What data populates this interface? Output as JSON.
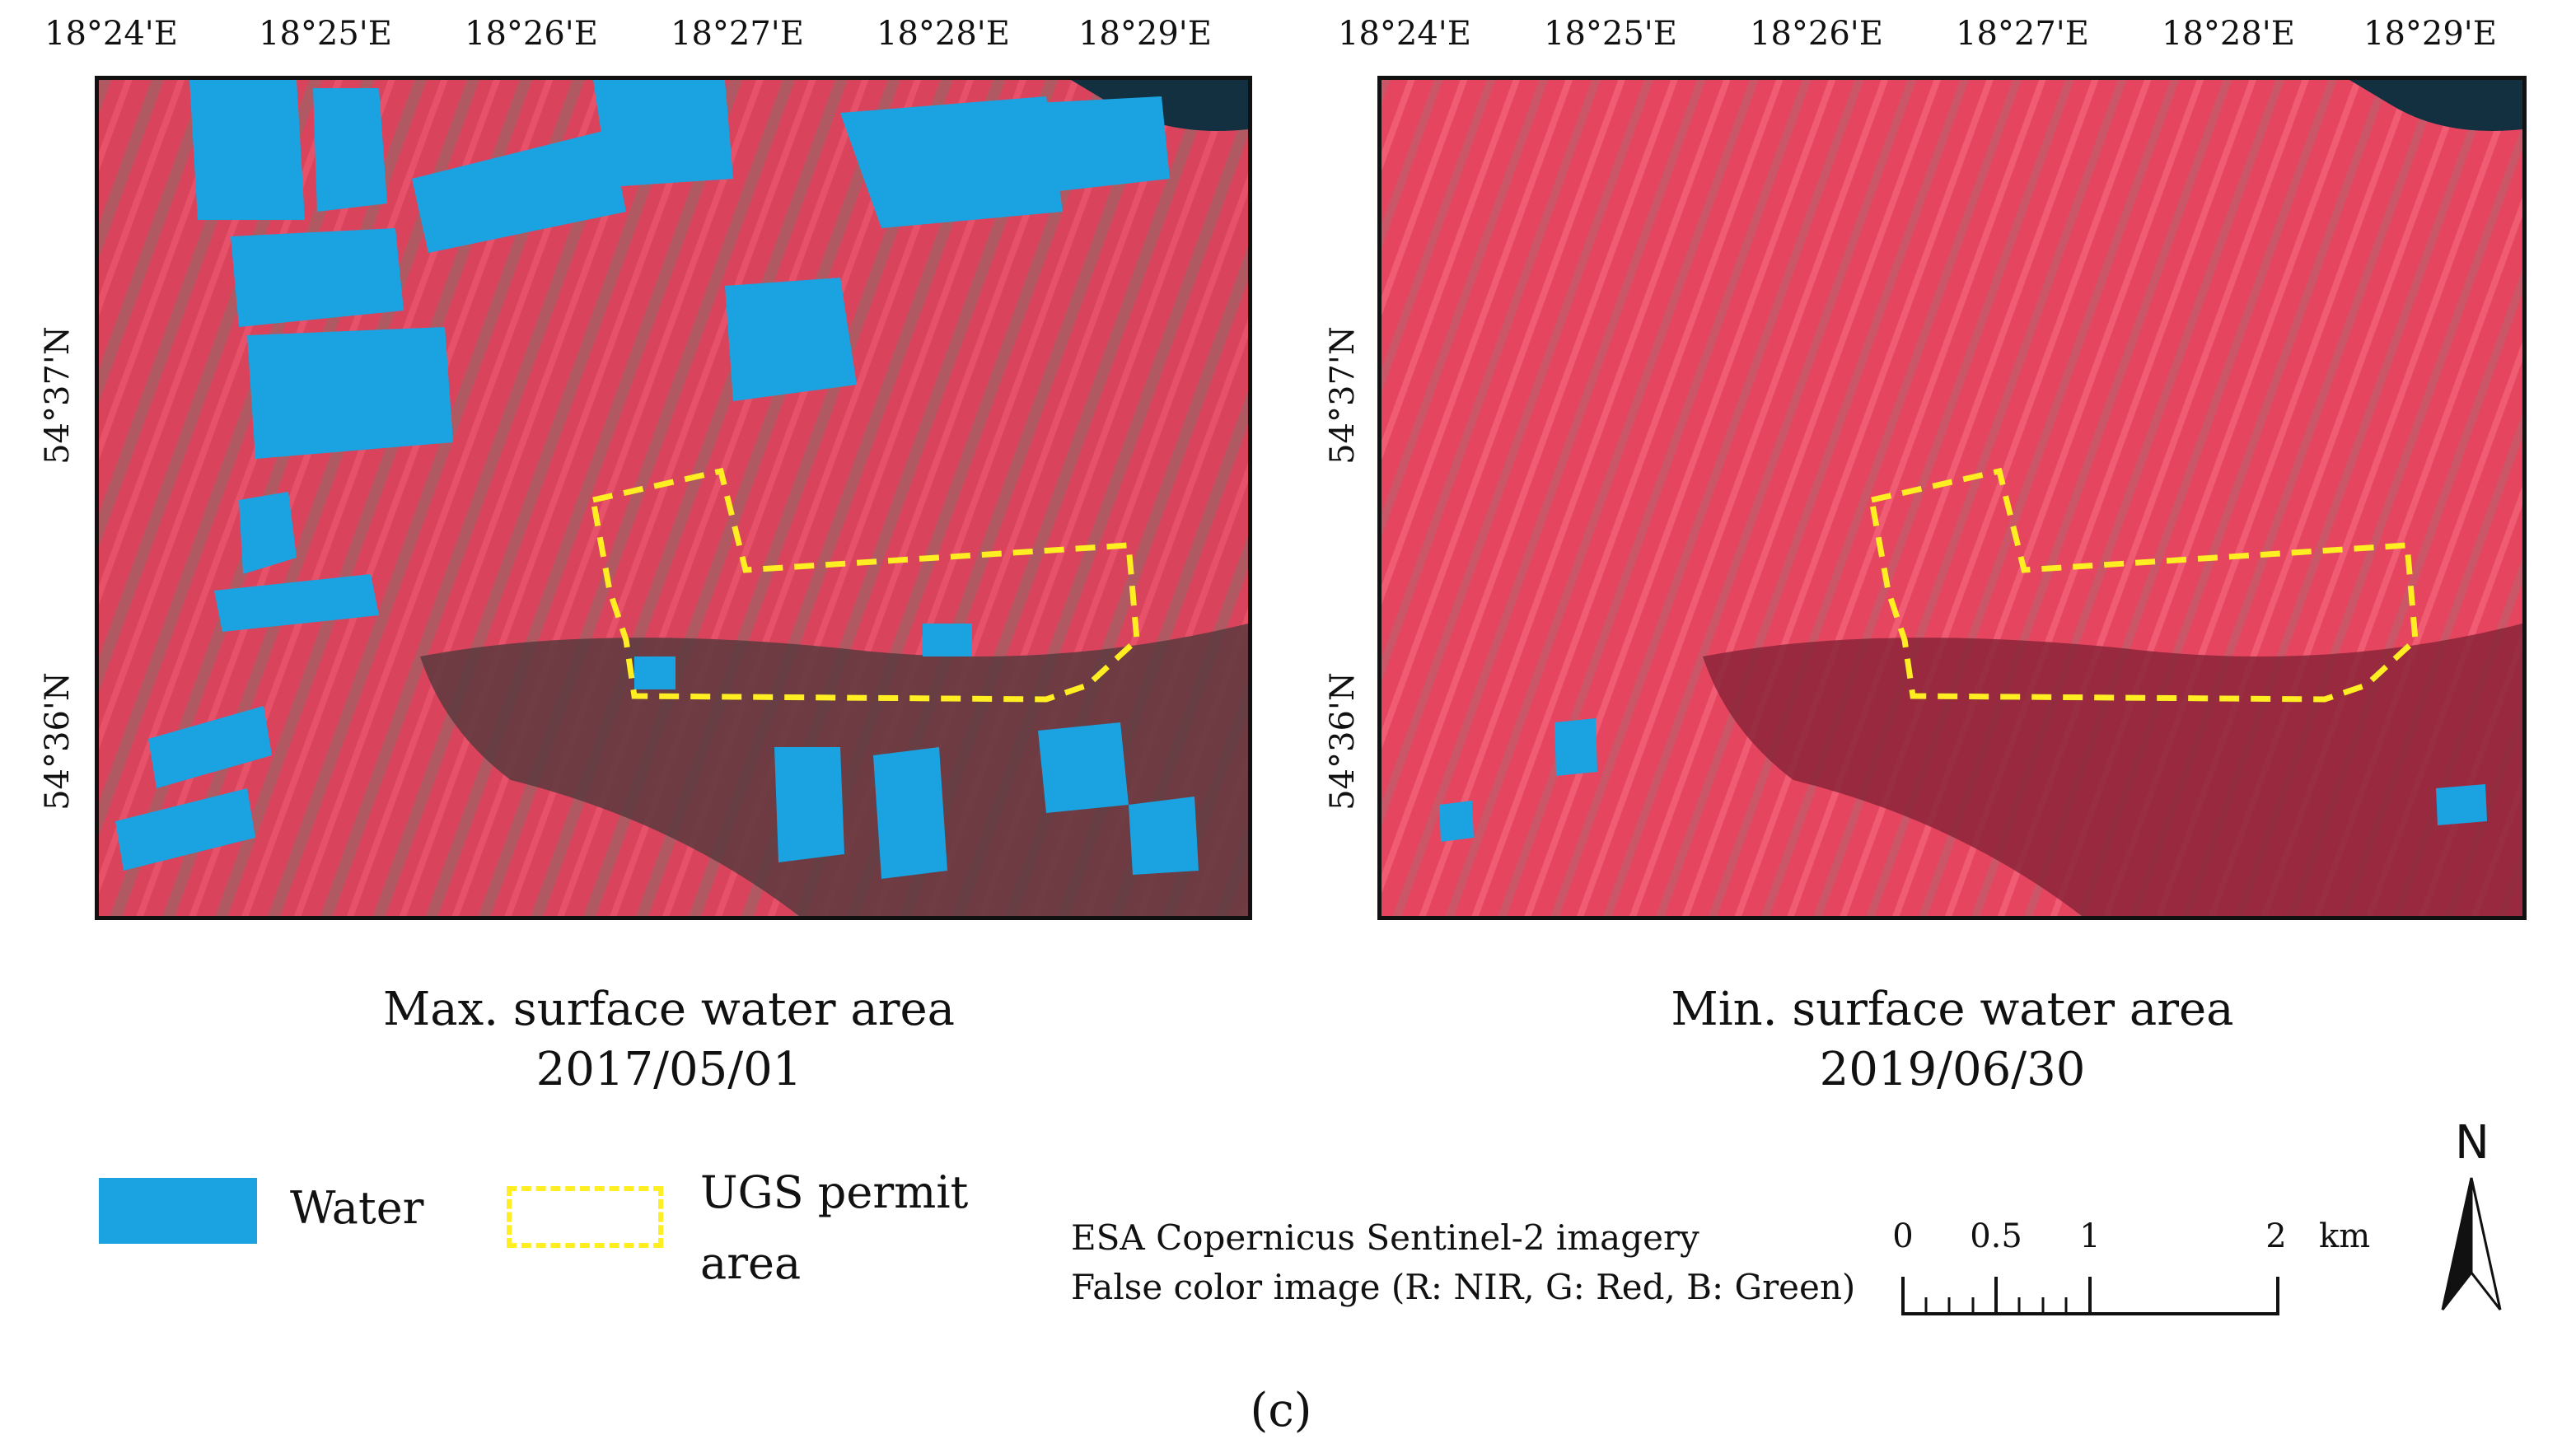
{
  "maps": [
    {
      "id": "max",
      "lon_ticks": [
        "18°24'E",
        "18°25'E",
        "18°26'E",
        "18°27'E",
        "18°28'E",
        "18°29'E"
      ],
      "lat_ticks": [
        "54°37'N",
        "54°36'N"
      ],
      "caption_line1": "Max. surface water area",
      "caption_line2": "2017/05/01",
      "shows_water": true
    },
    {
      "id": "min",
      "lon_ticks": [
        "18°24'E",
        "18°25'E",
        "18°26'E",
        "18°27'E",
        "18°28'E",
        "18°29'E"
      ],
      "lat_ticks": [
        "54°37'N",
        "54°36'N"
      ],
      "caption_line1": "Min. surface water area",
      "caption_line2": "2019/06/30",
      "shows_water": false
    }
  ],
  "legend": {
    "water_label": "Water",
    "water_color": "#1aa3e0",
    "permit_label_line1": "UGS permit",
    "permit_label_line2": "area",
    "permit_color": "#ffee22"
  },
  "source": {
    "line1": "ESA Copernicus Sentinel-2 imagery",
    "line2": "False color image (R: NIR, G: Red, B: Green)"
  },
  "scale_bar": {
    "labels": [
      "0",
      "0.5",
      "1",
      "2"
    ],
    "unit": "km"
  },
  "north_arrow": {
    "label": "N"
  },
  "panel_label": "(c)",
  "colors": {
    "vegetation": "#e0405a",
    "forest": "#6a2a35",
    "bare": "#8a7a70",
    "sea": "#123040"
  }
}
